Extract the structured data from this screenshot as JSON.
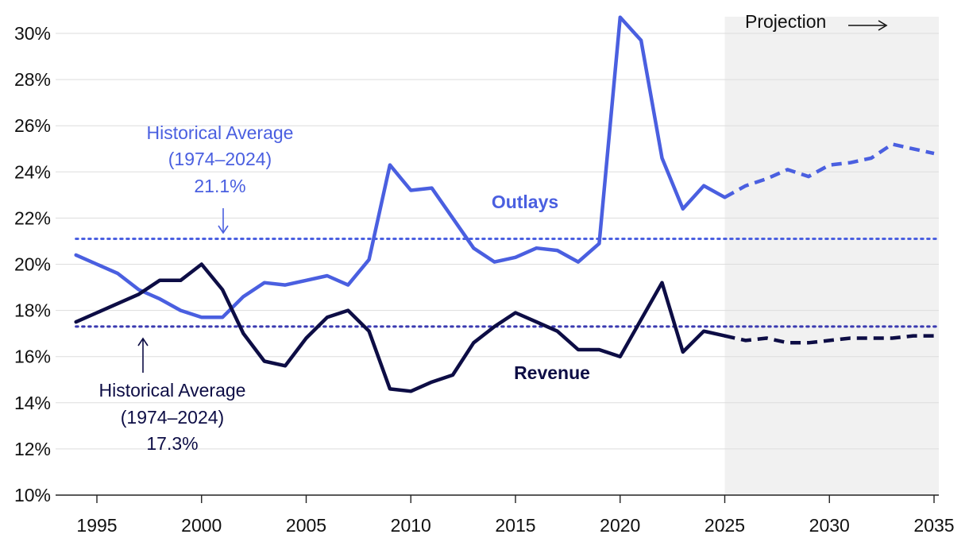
{
  "chart_data": {
    "type": "line",
    "xlim": [
      1994,
      2035
    ],
    "ylim": [
      10,
      30
    ],
    "x_ticks": [
      1995,
      2000,
      2005,
      2010,
      2015,
      2020,
      2025,
      2030,
      2035
    ],
    "y_ticks": [
      10,
      12,
      14,
      16,
      18,
      20,
      22,
      24,
      26,
      28,
      30
    ],
    "y_tick_labels": [
      "10%",
      "12%",
      "14%",
      "16%",
      "18%",
      "20%",
      "22%",
      "24%",
      "26%",
      "28%",
      "30%"
    ],
    "grid": "horizontal",
    "projection": {
      "label": "Projection",
      "start": 2025,
      "end": 2035
    },
    "colors": {
      "outlays": "#4a5fe0",
      "revenue": "#0d0d45",
      "projection_band": "#f1f1f1",
      "grid": "#dddddd"
    },
    "series": [
      {
        "name": "Outlays",
        "label": "Outlays",
        "historical": [
          [
            1994,
            20.4
          ],
          [
            1995,
            20.0
          ],
          [
            1996,
            19.6
          ],
          [
            1997,
            18.9
          ],
          [
            1998,
            18.5
          ],
          [
            1999,
            18.0
          ],
          [
            2000,
            17.7
          ],
          [
            2001,
            17.7
          ],
          [
            2002,
            18.6
          ],
          [
            2003,
            19.2
          ],
          [
            2004,
            19.1
          ],
          [
            2005,
            19.3
          ],
          [
            2006,
            19.5
          ],
          [
            2007,
            19.1
          ],
          [
            2008,
            20.2
          ],
          [
            2009,
            24.3
          ],
          [
            2010,
            23.2
          ],
          [
            2011,
            23.3
          ],
          [
            2012,
            22.0
          ],
          [
            2013,
            20.7
          ],
          [
            2014,
            20.1
          ],
          [
            2015,
            20.3
          ],
          [
            2016,
            20.7
          ],
          [
            2017,
            20.6
          ],
          [
            2018,
            20.1
          ],
          [
            2019,
            20.9
          ],
          [
            2020,
            30.7
          ],
          [
            2021,
            29.7
          ],
          [
            2022,
            24.6
          ],
          [
            2023,
            22.4
          ],
          [
            2024,
            23.4
          ],
          [
            2025,
            22.9
          ]
        ],
        "projected": [
          [
            2025,
            22.9
          ],
          [
            2026,
            23.4
          ],
          [
            2027,
            23.7
          ],
          [
            2028,
            24.1
          ],
          [
            2029,
            23.8
          ],
          [
            2030,
            24.3
          ],
          [
            2031,
            24.4
          ],
          [
            2032,
            24.6
          ],
          [
            2033,
            25.2
          ],
          [
            2034,
            25.0
          ],
          [
            2035,
            24.8
          ]
        ]
      },
      {
        "name": "Revenue",
        "label": "Revenue",
        "historical": [
          [
            1994,
            17.5
          ],
          [
            1995,
            17.9
          ],
          [
            1996,
            18.3
          ],
          [
            1997,
            18.7
          ],
          [
            1998,
            19.3
          ],
          [
            1999,
            19.3
          ],
          [
            2000,
            20.0
          ],
          [
            2001,
            18.9
          ],
          [
            2002,
            17.0
          ],
          [
            2003,
            15.8
          ],
          [
            2004,
            15.6
          ],
          [
            2005,
            16.8
          ],
          [
            2006,
            17.7
          ],
          [
            2007,
            18.0
          ],
          [
            2008,
            17.1
          ],
          [
            2009,
            14.6
          ],
          [
            2010,
            14.5
          ],
          [
            2011,
            14.9
          ],
          [
            2012,
            15.2
          ],
          [
            2013,
            16.6
          ],
          [
            2014,
            17.3
          ],
          [
            2015,
            17.9
          ],
          [
            2016,
            17.5
          ],
          [
            2017,
            17.1
          ],
          [
            2018,
            16.3
          ],
          [
            2019,
            16.3
          ],
          [
            2020,
            16.0
          ],
          [
            2021,
            17.6
          ],
          [
            2022,
            19.2
          ],
          [
            2023,
            16.2
          ],
          [
            2024,
            17.1
          ],
          [
            2025,
            16.9
          ]
        ],
        "projected": [
          [
            2025,
            16.9
          ],
          [
            2026,
            16.7
          ],
          [
            2027,
            16.8
          ],
          [
            2028,
            16.6
          ],
          [
            2029,
            16.6
          ],
          [
            2030,
            16.7
          ],
          [
            2031,
            16.8
          ],
          [
            2032,
            16.8
          ],
          [
            2033,
            16.8
          ],
          [
            2034,
            16.9
          ],
          [
            2035,
            16.9
          ]
        ]
      }
    ],
    "reference_lines": [
      {
        "name": "outlays-average",
        "value": 21.1,
        "label_lines": [
          "Historical Average",
          "(1974–2024)",
          "21.1%"
        ]
      },
      {
        "name": "revenue-average",
        "value": 17.3,
        "label_lines": [
          "Historical Average",
          "(1974–2024)",
          "17.3%"
        ]
      }
    ]
  }
}
